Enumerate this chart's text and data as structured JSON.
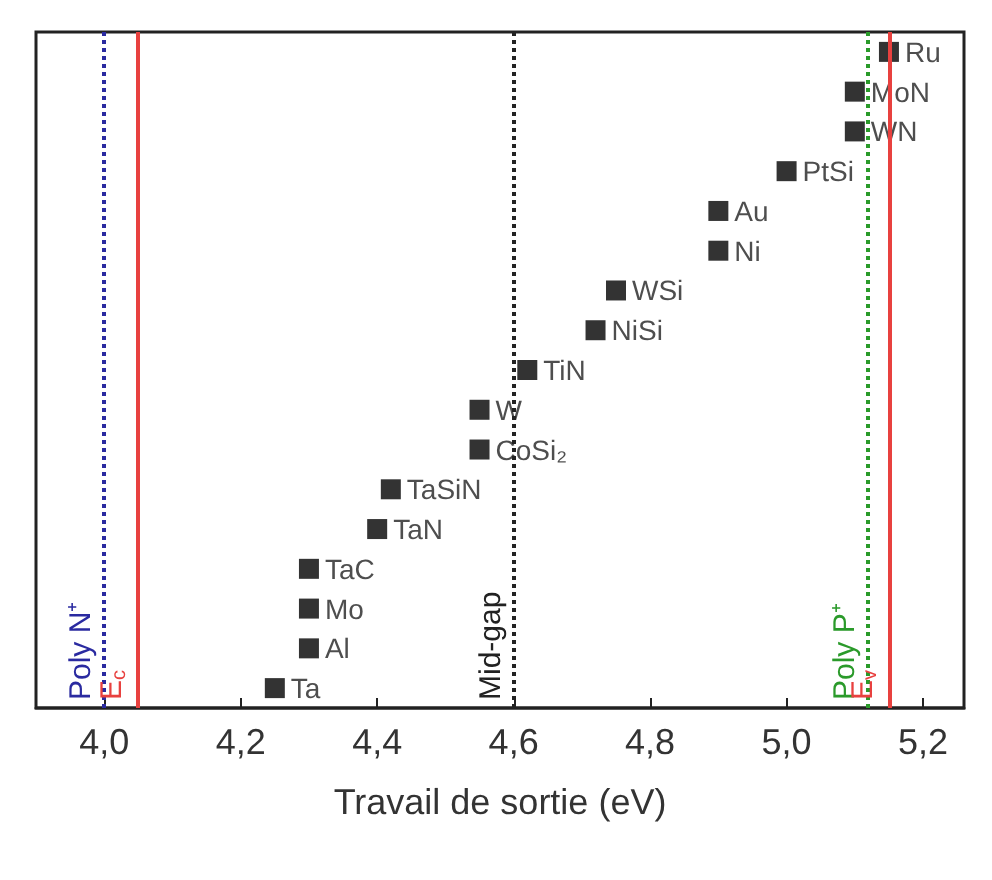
{
  "chart_data": {
    "type": "scatter",
    "orientation": "horizontal",
    "xlabel": "Travail de sortie (eV)",
    "tick_labels": "x",
    "grid": false,
    "marker": "square",
    "xlim": [
      3.9,
      5.26
    ],
    "xticks": [
      {
        "value": 4.0,
        "label": "4,0"
      },
      {
        "value": 4.2,
        "label": "4,2"
      },
      {
        "value": 4.4,
        "label": "4,4"
      },
      {
        "value": 4.6,
        "label": "4,6"
      },
      {
        "value": 4.8,
        "label": "4,8"
      },
      {
        "value": 5.0,
        "label": "5,0"
      },
      {
        "value": 5.2,
        "label": "5,2"
      }
    ],
    "categories": [
      null,
      null,
      null,
      null,
      null,
      null,
      null,
      null,
      null,
      null,
      null,
      null,
      null,
      null,
      null,
      null,
      null
    ],
    "series": [
      {
        "color": "#000000",
        "values": [
          5.15,
          5.1,
          5.1,
          5.0,
          4.9,
          4.9,
          4.75,
          4.72,
          4.62,
          4.55,
          4.55,
          4.42,
          4.4,
          4.3,
          4.3,
          4.3,
          4.25
        ],
        "value_labels": [
          "Ru",
          "MoN",
          "WN",
          "PtSi",
          "Au",
          "Ni",
          "WSi",
          "NiSi",
          "TiN",
          "W",
          "CoSi₂",
          "TaSiN",
          "TaN",
          "TaC",
          "Mo",
          "Al",
          "Ta"
        ]
      }
    ],
    "ref_lines": [
      {
        "axis": "x",
        "value": 4.0,
        "label": "Poly N⁺",
        "color": "#2a2aa0",
        "line_style": "dotted"
      },
      {
        "axis": "x",
        "value": 4.05,
        "label": "E$_{c}$",
        "color": "#e8413f",
        "line_style": "solid"
      },
      {
        "axis": "x",
        "value": 4.6,
        "label": "Mid-gap",
        "color": "#222222",
        "line_style": "dotted"
      },
      {
        "axis": "x",
        "value": 5.12,
        "label": "Poly P⁺",
        "color": "#2a9a2a",
        "line_style": "dotted"
      },
      {
        "axis": "x",
        "value": 5.15,
        "label": "E$_{v}$",
        "color": "#e8413f",
        "line_style": "solid"
      }
    ]
  }
}
